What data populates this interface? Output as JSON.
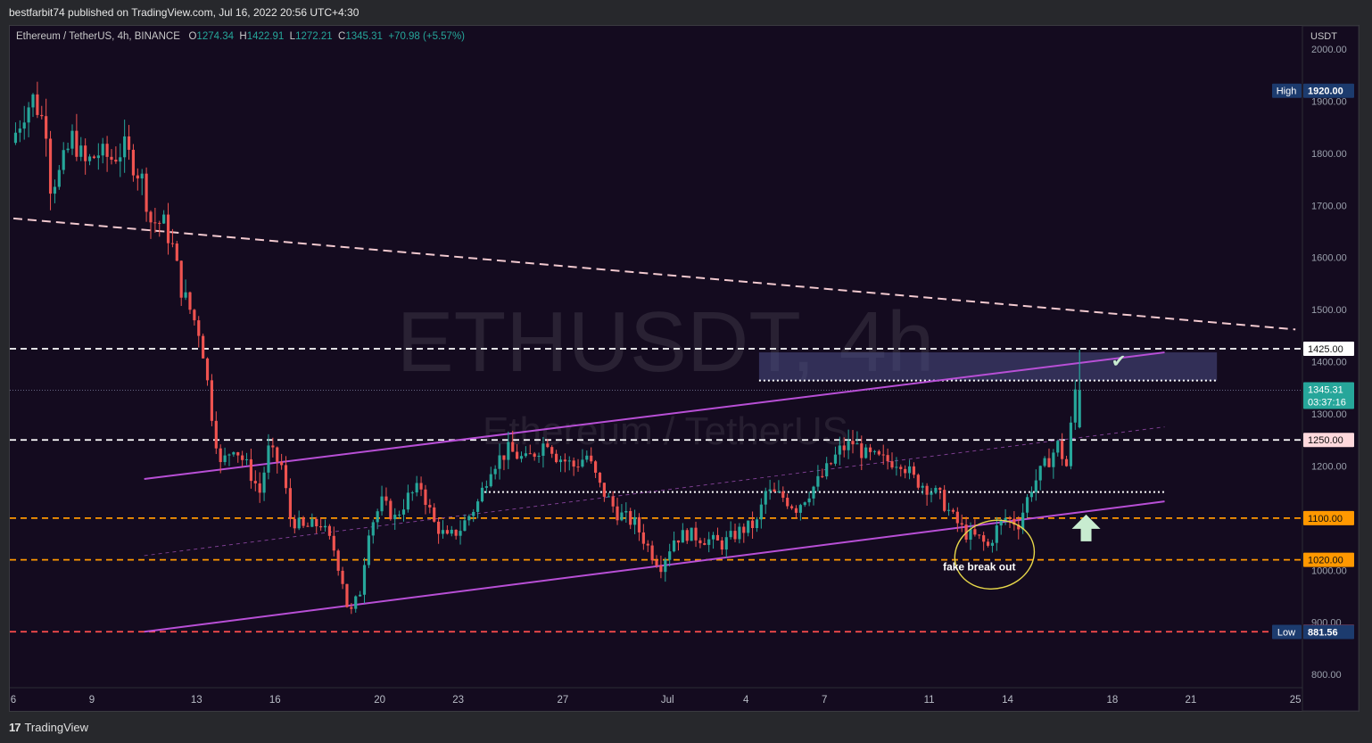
{
  "header": {
    "publisher_line": "bestfarbit74 published on TradingView.com, Jul 16, 2022 20:56 UTC+4:30"
  },
  "legend": {
    "pair": "Ethereum / TetherUS, 4h, BINANCE",
    "open_label": "O",
    "open": "1274.34",
    "high_label": "H",
    "high": "1422.91",
    "low_label": "L",
    "low": "1272.21",
    "close_label": "C",
    "close": "1345.31",
    "change": "+70.98 (+5.57%)"
  },
  "watermark": {
    "symbol": "ETHUSDT, 4h",
    "name": "Ethereum / TetherUS"
  },
  "footer": {
    "brand": "TradingView",
    "brand_mark": "17"
  },
  "annotations": {
    "fake_breakout": "fake break out",
    "check": "✔"
  },
  "colors": {
    "background": "#140b1f",
    "up": "#26a69a",
    "down": "#ef5350",
    "channel": "#b84fd6",
    "orange_level": "#ff9800",
    "red_level": "#ff4d4d",
    "resistance_zone": "#4a4f85",
    "ellipse": "#e8d84a",
    "arrow": "#c8ecd0"
  },
  "chart_data": {
    "type": "candlestick",
    "symbol": "ETHUSDT",
    "timeframe": "4h",
    "exchange": "BINANCE",
    "currency": "USDT",
    "yaxis": {
      "unit": "USDT",
      "ylim": [
        760,
        2040
      ],
      "ticks": [
        "2000.00",
        "1900.00",
        "1800.00",
        "1700.00",
        "1600.00",
        "1500.00",
        "1400.00",
        "1300.00",
        "1200.00",
        "1100.00",
        "1000.00",
        "900.00",
        "800.00"
      ]
    },
    "xaxis": {
      "ticks": [
        {
          "label": "6",
          "date": "2022-06-06"
        },
        {
          "label": "9",
          "date": "2022-06-09"
        },
        {
          "label": "13",
          "date": "2022-06-13"
        },
        {
          "label": "16",
          "date": "2022-06-16"
        },
        {
          "label": "20",
          "date": "2022-06-20"
        },
        {
          "label": "23",
          "date": "2022-06-23"
        },
        {
          "label": "27",
          "date": "2022-06-27"
        },
        {
          "label": "Jul",
          "date": "2022-07-01"
        },
        {
          "label": "4",
          "date": "2022-07-04"
        },
        {
          "label": "7",
          "date": "2022-07-07"
        },
        {
          "label": "11",
          "date": "2022-07-11"
        },
        {
          "label": "14",
          "date": "2022-07-14"
        },
        {
          "label": "18",
          "date": "2022-07-18"
        },
        {
          "label": "21",
          "date": "2022-07-21"
        },
        {
          "label": "25",
          "date": "2022-07-25"
        }
      ]
    },
    "price_path": [
      [
        "2022-06-06T00:00",
        1820
      ],
      [
        "2022-06-06T12:00",
        1880
      ],
      [
        "2022-06-06T20:00",
        1905
      ],
      [
        "2022-06-07T08:00",
        1850
      ],
      [
        "2022-06-07T12:00",
        1740
      ],
      [
        "2022-06-07T20:00",
        1760
      ],
      [
        "2022-06-08T08:00",
        1830
      ],
      [
        "2022-06-08T20:00",
        1780
      ],
      [
        "2022-06-09T08:00",
        1800
      ],
      [
        "2022-06-09T20:00",
        1790
      ],
      [
        "2022-06-10T08:00",
        1810
      ],
      [
        "2022-06-10T16:00",
        1780
      ],
      [
        "2022-06-11T00:00",
        1750
      ],
      [
        "2022-06-11T08:00",
        1670
      ],
      [
        "2022-06-11T20:00",
        1665
      ],
      [
        "2022-06-12T04:00",
        1620
      ],
      [
        "2022-06-12T12:00",
        1540
      ],
      [
        "2022-06-12T20:00",
        1500
      ],
      [
        "2022-06-13T04:00",
        1460
      ],
      [
        "2022-06-13T08:00",
        1420
      ],
      [
        "2022-06-13T16:00",
        1300
      ],
      [
        "2022-06-14T00:00",
        1200
      ],
      [
        "2022-06-14T12:00",
        1240
      ],
      [
        "2022-06-15T00:00",
        1200
      ],
      [
        "2022-06-15T12:00",
        1150
      ],
      [
        "2022-06-15T20:00",
        1230
      ],
      [
        "2022-06-16T08:00",
        1200
      ],
      [
        "2022-06-16T16:00",
        1100
      ],
      [
        "2022-06-17T04:00",
        1080
      ],
      [
        "2022-06-17T20:00",
        1090
      ],
      [
        "2022-06-18T08:00",
        1040
      ],
      [
        "2022-06-18T16:00",
        980
      ],
      [
        "2022-06-18T22:00",
        910
      ],
      [
        "2022-06-19T08:00",
        960
      ],
      [
        "2022-06-19T16:00",
        1080
      ],
      [
        "2022-06-20T04:00",
        1130
      ],
      [
        "2022-06-20T16:00",
        1100
      ],
      [
        "2022-06-21T04:00",
        1140
      ],
      [
        "2022-06-21T16:00",
        1160
      ],
      [
        "2022-06-22T04:00",
        1090
      ],
      [
        "2022-06-22T16:00",
        1060
      ],
      [
        "2022-06-23T04:00",
        1080
      ],
      [
        "2022-06-23T20:00",
        1130
      ],
      [
        "2022-06-24T08:00",
        1200
      ],
      [
        "2022-06-25T00:00",
        1230
      ],
      [
        "2022-06-25T16:00",
        1210
      ],
      [
        "2022-06-26T12:00",
        1250
      ],
      [
        "2022-06-26T20:00",
        1220
      ],
      [
        "2022-06-27T12:00",
        1200
      ],
      [
        "2022-06-28T00:00",
        1220
      ],
      [
        "2022-06-28T12:00",
        1160
      ],
      [
        "2022-06-29T04:00",
        1110
      ],
      [
        "2022-06-29T20:00",
        1090
      ],
      [
        "2022-06-30T12:00",
        1030
      ],
      [
        "2022-06-30T20:00",
        1010
      ],
      [
        "2022-07-01T08:00",
        1060
      ],
      [
        "2022-07-01T20:00",
        1070
      ],
      [
        "2022-07-02T12:00",
        1060
      ],
      [
        "2022-07-03T04:00",
        1050
      ],
      [
        "2022-07-03T20:00",
        1075
      ],
      [
        "2022-07-04T12:00",
        1090
      ],
      [
        "2022-07-04T20:00",
        1150
      ],
      [
        "2022-07-05T12:00",
        1140
      ],
      [
        "2022-07-06T00:00",
        1120
      ],
      [
        "2022-07-06T12:00",
        1150
      ],
      [
        "2022-07-07T00:00",
        1180
      ],
      [
        "2022-07-07T16:00",
        1230
      ],
      [
        "2022-07-08T04:00",
        1245
      ],
      [
        "2022-07-08T16:00",
        1220
      ],
      [
        "2022-07-09T08:00",
        1210
      ],
      [
        "2022-07-10T00:00",
        1210
      ],
      [
        "2022-07-10T12:00",
        1175
      ],
      [
        "2022-07-11T00:00",
        1160
      ],
      [
        "2022-07-11T12:00",
        1140
      ],
      [
        "2022-07-12T00:00",
        1100
      ],
      [
        "2022-07-12T12:00",
        1070
      ],
      [
        "2022-07-13T00:00",
        1060
      ],
      [
        "2022-07-13T08:00",
        1045
      ],
      [
        "2022-07-13T16:00",
        1080
      ],
      [
        "2022-07-14T00:00",
        1100
      ],
      [
        "2022-07-14T12:00",
        1090
      ],
      [
        "2022-07-15T00:00",
        1160
      ],
      [
        "2022-07-15T12:00",
        1200
      ],
      [
        "2022-07-16T00:00",
        1240
      ],
      [
        "2022-07-16T08:00",
        1200
      ],
      [
        "2022-07-16T12:00",
        1274.34
      ],
      [
        "2022-07-16T16:00",
        1345.31
      ]
    ],
    "last_candle": {
      "date": "2022-07-16T16:00",
      "open": 1274.34,
      "high": 1422.91,
      "low": 1272.21,
      "close": 1345.31
    },
    "price_labels": [
      {
        "value": 1920.0,
        "text": "1920.00",
        "tag": "High"
      },
      {
        "value": 1425.0,
        "text": "1425.00"
      },
      {
        "value": 1345.31,
        "text": "1345.31",
        "countdown": "03:37:16"
      },
      {
        "value": 1250.0,
        "text": "1250.00"
      },
      {
        "value": 1100.0,
        "text": "1100.00"
      },
      {
        "value": 1020.0,
        "text": "1020.00"
      },
      {
        "value": 882.0,
        "text": "882.00"
      },
      {
        "value": 881.56,
        "text": "881.56",
        "tag": "Low"
      }
    ],
    "horizontal_levels": [
      {
        "value": 1425,
        "style": "dashed",
        "color": "#ffffff"
      },
      {
        "value": 1250,
        "style": "dashed",
        "color": "#ffffff"
      },
      {
        "value": 1100,
        "style": "dashed",
        "color": "#ff9800"
      },
      {
        "value": 1020,
        "style": "dashed",
        "color": "#ff9800"
      },
      {
        "value": 882,
        "style": "dashed",
        "color": "#ff4d4d"
      },
      {
        "value": 1345.31,
        "style": "dotted",
        "color": "#8a8fb0"
      }
    ],
    "dotted_levels": [
      {
        "value": 1364,
        "from": "2022-07-04T12:00",
        "to": "2022-07-22T00:00"
      },
      {
        "value": 1150,
        "from": "2022-06-24T00:00",
        "to": "2022-07-20T00:00"
      }
    ],
    "resistance_zone": {
      "from": "2022-07-04T12:00",
      "to": "2022-07-22T00:00",
      "low": 1364,
      "high": 1418
    },
    "trendlines": [
      {
        "name": "channel-top",
        "from": [
          "2022-06-11T00:00",
          1175
        ],
        "to": [
          "2022-07-20T00:00",
          1418
        ],
        "style": "solid"
      },
      {
        "name": "channel-bottom",
        "from": [
          "2022-06-11T00:00",
          882
        ],
        "to": [
          "2022-07-20T00:00",
          1132
        ],
        "style": "solid"
      },
      {
        "name": "channel-mid",
        "from": [
          "2022-06-11T00:00",
          1028
        ],
        "to": [
          "2022-07-20T00:00",
          1275
        ],
        "style": "dashed-thin"
      },
      {
        "name": "long-downtrend",
        "from": [
          "2022-06-06T00:00",
          1675
        ],
        "to": [
          "2022-07-25T00:00",
          1462
        ],
        "style": "dashed"
      }
    ]
  }
}
